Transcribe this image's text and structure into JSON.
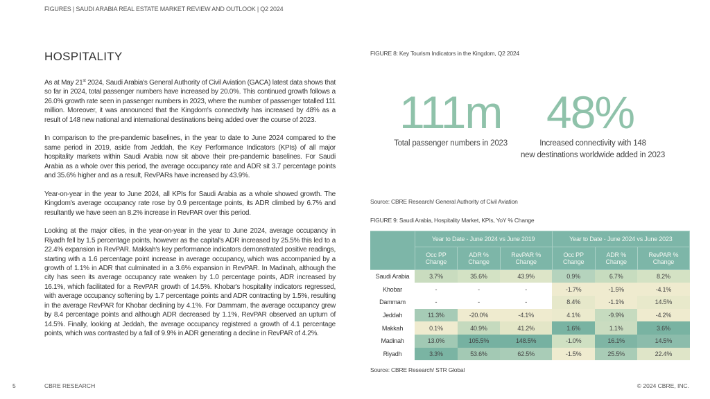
{
  "header": "FIGURES  |  SAUDI ARABIA REAL ESTATE MARKET REVIEW AND OUTLOOK  |  Q2 2024",
  "title": "HOSPITALITY",
  "p1": {
    "a": "As at May 21",
    "sup": "st",
    "b": " 2024, Saudi Arabia's General Authority of Civil Aviation (GACA) latest data shows that so far in 2024, total passenger numbers have increased by 20.0%. This continued growth follows a 26.0% growth rate seen in passenger numbers in 2023, where the number of passenger totalled 111 million. Moreover, it was announced that the Kingdom's connectivity has increased by 48% as a result of 148 new national and international destinations being added over the course of 2023."
  },
  "p2": "In comparison to the pre-pandemic baselines, in the year to date to June 2024 compared to the same period in 2019, aside from Jeddah, the Key Performance Indicators (KPIs) of all major hospitality markets within Saudi Arabia now sit above their pre-pandemic baselines. For Saudi Arabia as a whole over this period, the average occupancy rate and ADR sit 3.7 percentage points and 35.6% higher and as a result, RevPARs have increased by 43.9%.",
  "p3": "Year-on-year in the year to June 2024, all KPIs for Saudi Arabia as a whole showed growth. The Kingdom's average occupancy rate rose by 0.9 percentage points, its ADR climbed by 6.7% and resultantly we have seen an 8.2% increase in RevPAR over this period.",
  "p4": "Looking at the major cities, in the year-on-year in the year to June 2024, average occupancy in Riyadh fell by 1.5 percentage points, however as the capital's ADR increased by 25.5% this led to a 22.4% expansion in RevPAR. Makkah's key performance indicators demonstrated positive readings, starting with a 1.6 percentage point increase in average occupancy, which was accompanied by a growth of 1.1% in ADR that culminated in a 3.6% expansion in RevPAR. In Madinah, although the city has seen its average occupancy rate weaken by 1.0 percentage points, ADR increased by 16.1%, which facilitated for a RevPAR growth of 14.5%. Khobar's hospitality indicators regressed, with average occupancy softening by 1.7 percentage points and ADR contracting by 1.5%, resulting in the average RevPAR for Khobar declining by 4.1%. For Dammam, the average occupancy grew by 8.4 percentage points and although ADR decreased by 1.1%, RevPAR observed an upturn of 14.5%. Finally, looking at Jeddah, the average occupancy registered a growth of 4.1 percentage points, which was contrasted by a fall of 9.9% in ADR generating a decline in RevPAR of 4.2%.",
  "fig8": {
    "caption": "FIGURE 8: Key Tourism Indicators in the Kingdom, Q2 2024",
    "kpi1": {
      "value": "111m",
      "label": "Total passenger numbers in 2023"
    },
    "kpi2": {
      "value": "48%",
      "label1": "Increased connectivity with 148",
      "label2": "new destinations worldwide added in 2023"
    },
    "source": "Source: CBRE Research/ General Authority of Civil Aviation"
  },
  "fig9": {
    "caption": "FIGURE 9: Saudi Arabia, Hospitality Market, KPIs, YoY % Change",
    "group1": "Year to Date - June 2024 vs June 2019",
    "group2": "Year to Date - June 2024 vs June 2023",
    "cols": [
      "Occ PP Change",
      "ADR % Change",
      "RevPAR % Change",
      "Occ PP Change",
      "ADR % Change",
      "RevPAR % Change"
    ],
    "rows": [
      {
        "city": "Saudi Arabia",
        "v": [
          "3.7%",
          "35.6%",
          "43.9%",
          "0.9%",
          "6.7%",
          "8.2%"
        ],
        "c": [
          "#c9dcbf",
          "#d3e2c4",
          "#dde5c8",
          "#b5d3bd",
          "#c7dcbf",
          "#d4e2c4"
        ]
      },
      {
        "city": "Khobar",
        "v": [
          "-",
          "-",
          "-",
          "-1.7%",
          "-1.5%",
          "-4.1%"
        ],
        "c": [
          "#ffffff",
          "#ffffff",
          "#ffffff",
          "#efebcf",
          "#efebcf",
          "#efebcf"
        ]
      },
      {
        "city": "Dammam",
        "v": [
          "-",
          "-",
          "-",
          "8.4%",
          "-1.1%",
          "14.5%"
        ],
        "c": [
          "#ffffff",
          "#ffffff",
          "#ffffff",
          "#e6e8ca",
          "#efebcf",
          "#e8e9cb"
        ]
      },
      {
        "city": "Jeddah",
        "v": [
          "11.3%",
          "-20.0%",
          "-4.1%",
          "4.1%",
          "-9.9%",
          "-4.2%"
        ],
        "c": [
          "#a6cbb6",
          "#efebcf",
          "#efebcf",
          "#ebeacd",
          "#c6dbbf",
          "#efebcf"
        ]
      },
      {
        "city": "Makkah",
        "v": [
          "0.1%",
          "40.9%",
          "41.2%",
          "1.6%",
          "1.1%",
          "3.6%"
        ],
        "c": [
          "#efebcf",
          "#c5dabe",
          "#e3e6c7",
          "#79b3a2",
          "#cadcc0",
          "#79b3a2"
        ]
      },
      {
        "city": "Madinah",
        "v": [
          "13.0%",
          "105.5%",
          "148.5%",
          "-1.0%",
          "16.1%",
          "14.5%"
        ],
        "c": [
          "#a1c9b4",
          "#76b1a1",
          "#76b1a1",
          "#cfe0c2",
          "#7fb5a4",
          "#8cbcab"
        ]
      },
      {
        "city": "Riyadh",
        "v": [
          "3.3%",
          "53.6%",
          "62.5%",
          "-1.5%",
          "25.5%",
          "22.4%"
        ],
        "c": [
          "#7ab4a3",
          "#a3c9b4",
          "#a9ccb7",
          "#efebcf",
          "#a9ccb6",
          "#dfe5c8"
        ]
      }
    ],
    "source": "Source: CBRE Research/ STR Global"
  },
  "footer": {
    "page": "5",
    "left": "CBRE RESEARCH",
    "right": "© 2024 CBRE, INC."
  }
}
